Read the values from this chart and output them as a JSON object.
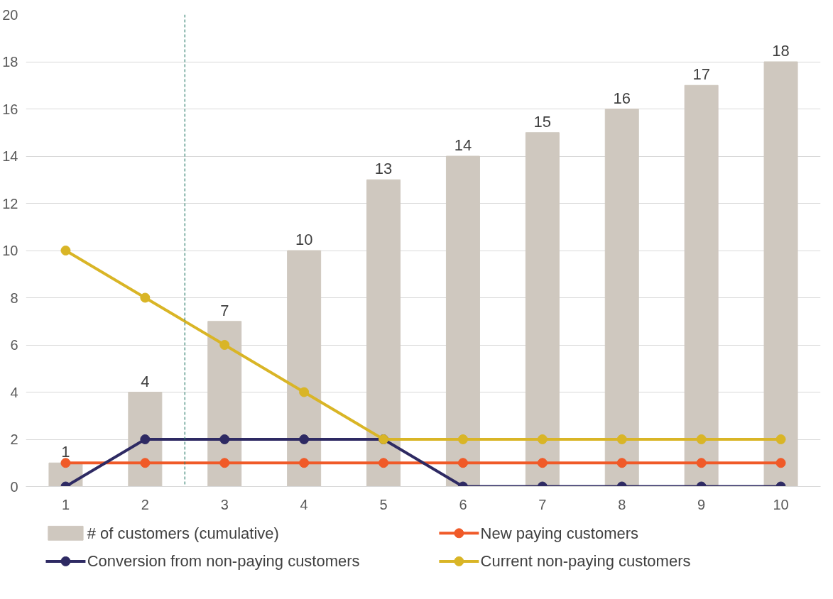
{
  "chart_data": {
    "type": "bar",
    "x": [
      1,
      2,
      3,
      4,
      5,
      6,
      7,
      8,
      9,
      10
    ],
    "xlim": [
      0.5,
      10.5
    ],
    "xticks": [
      1,
      2,
      3,
      4,
      5,
      6,
      7,
      8,
      9,
      10
    ],
    "ylim": [
      0,
      20
    ],
    "yticks": [
      0,
      2,
      4,
      6,
      8,
      10,
      12,
      14,
      16,
      18,
      20
    ],
    "grid": "y",
    "legend": "bottom",
    "marker": "circle",
    "line_style": "solid",
    "series": [
      {
        "name": "# of customers (cumulative)",
        "color": "#cfc8bf",
        "data_labels": true,
        "values": [
          1,
          4,
          7,
          10,
          13,
          14,
          15,
          16,
          17,
          18
        ]
      },
      {
        "name": "New paying customers",
        "type": "line",
        "color": "#f05a28",
        "values": [
          1,
          1,
          1,
          1,
          1,
          1,
          1,
          1,
          1,
          1
        ]
      },
      {
        "name": "Conversion from non-paying customers",
        "type": "line",
        "color": "#2e2a63",
        "values": [
          0,
          2,
          2,
          2,
          2,
          0,
          0,
          0,
          0,
          0
        ]
      },
      {
        "name": "Current non-paying customers",
        "type": "line",
        "color": "#d9b526",
        "values": [
          10,
          8,
          6,
          4,
          2,
          2,
          2,
          2,
          2,
          2
        ]
      }
    ],
    "ref_lines": [
      {
        "axis": "x",
        "value": 2.5,
        "color": "#2e7d6b",
        "line_style": "dashed"
      }
    ]
  }
}
